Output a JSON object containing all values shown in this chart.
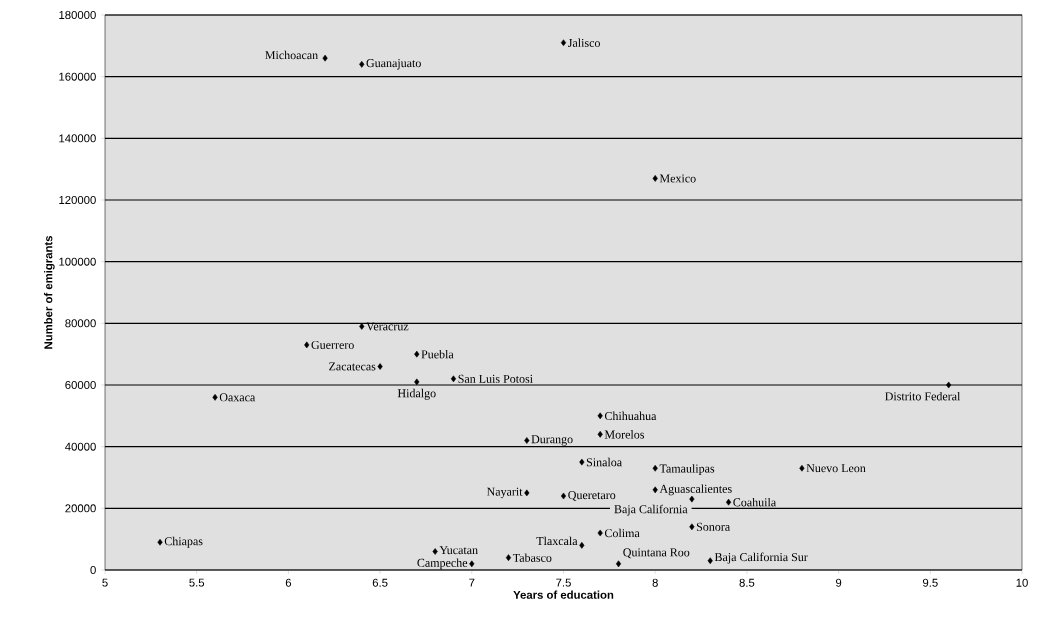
{
  "chart_data": {
    "type": "scatter",
    "xlabel": "Years of education",
    "ylabel": "Number of emigrants",
    "x": [
      6.2,
      6.4,
      7.5,
      8.0,
      6.4,
      6.1,
      6.7,
      6.5,
      6.7,
      6.9,
      5.6,
      9.6,
      7.7,
      7.7,
      7.3,
      7.6,
      8.0,
      8.8,
      7.3,
      7.5,
      8.0,
      8.2,
      8.4,
      5.3,
      7.7,
      8.2,
      7.6,
      6.8,
      7.0,
      7.2,
      7.8,
      8.3
    ],
    "values": [
      166000,
      164000,
      171000,
      127000,
      79000,
      73000,
      70000,
      66000,
      61000,
      62000,
      56000,
      60000,
      50000,
      44000,
      42000,
      35000,
      33000,
      33000,
      25000,
      24000,
      26000,
      23000,
      22000,
      9000,
      12000,
      14000,
      8000,
      6000,
      2000,
      4000,
      2000,
      3000
    ],
    "color": "#000000",
    "marker": "diamond",
    "grid": "y",
    "xlim": [
      5,
      10
    ],
    "xticks": [
      5,
      5.5,
      6,
      6.5,
      7,
      7.5,
      8,
      8.5,
      9,
      9.5,
      10
    ],
    "ylim": [
      0,
      180000
    ],
    "yticks": [
      0,
      20000,
      40000,
      60000,
      80000,
      100000,
      120000,
      140000,
      160000,
      180000
    ],
    "annotations": [
      {
        "text": "Michoacan",
        "x": 6.2,
        "y": 166000
      },
      {
        "text": "Guanajuato",
        "x": 6.4,
        "y": 164000
      },
      {
        "text": "Jalisco",
        "x": 7.5,
        "y": 171000
      },
      {
        "text": "Mexico",
        "x": 8.0,
        "y": 127000
      },
      {
        "text": "Veracruz",
        "x": 6.4,
        "y": 79000
      },
      {
        "text": "Guerrero",
        "x": 6.1,
        "y": 73000
      },
      {
        "text": "Puebla",
        "x": 6.7,
        "y": 70000
      },
      {
        "text": "Zacatecas",
        "x": 6.5,
        "y": 66000
      },
      {
        "text": "Hidalgo",
        "x": 6.7,
        "y": 61000
      },
      {
        "text": "San Luis Potosi",
        "x": 6.9,
        "y": 62000
      },
      {
        "text": "Oaxaca",
        "x": 5.6,
        "y": 56000
      },
      {
        "text": "Distrito Federal",
        "x": 9.6,
        "y": 60000
      },
      {
        "text": "Chihuahua",
        "x": 7.7,
        "y": 50000
      },
      {
        "text": "Morelos",
        "x": 7.7,
        "y": 44000
      },
      {
        "text": "Durango",
        "x": 7.3,
        "y": 42000
      },
      {
        "text": "Sinaloa",
        "x": 7.6,
        "y": 35000
      },
      {
        "text": "Tamaulipas",
        "x": 8.0,
        "y": 33000
      },
      {
        "text": "Nuevo Leon",
        "x": 8.8,
        "y": 33000
      },
      {
        "text": "Nayarit",
        "x": 7.3,
        "y": 25000
      },
      {
        "text": "Queretaro",
        "x": 7.5,
        "y": 24000
      },
      {
        "text": "Aguascalientes",
        "x": 8.0,
        "y": 26000
      },
      {
        "text": "Baja California",
        "x": 8.2,
        "y": 23000
      },
      {
        "text": "Coahuila",
        "x": 8.4,
        "y": 22000
      },
      {
        "text": "Chiapas",
        "x": 5.3,
        "y": 9000
      },
      {
        "text": "Colima",
        "x": 7.7,
        "y": 12000
      },
      {
        "text": "Sonora",
        "x": 8.2,
        "y": 14000
      },
      {
        "text": "Tlaxcala",
        "x": 7.6,
        "y": 8000
      },
      {
        "text": "Yucatan",
        "x": 6.8,
        "y": 6000
      },
      {
        "text": "Campeche",
        "x": 7.0,
        "y": 2000
      },
      {
        "text": "Tabasco",
        "x": 7.2,
        "y": 4000
      },
      {
        "text": "Quintana Roo",
        "x": 7.8,
        "y": 2000
      },
      {
        "text": "Baja California Sur",
        "x": 8.3,
        "y": 3000
      }
    ]
  }
}
